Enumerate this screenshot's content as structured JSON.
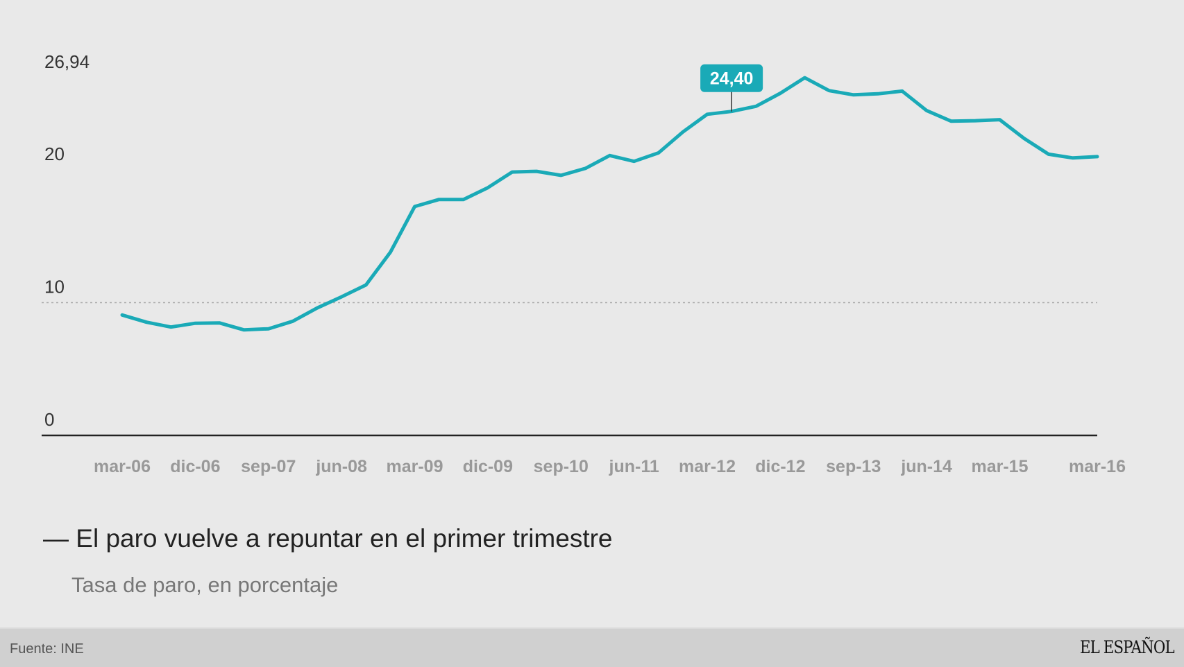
{
  "chart_data": {
    "type": "line",
    "title": "— El paro vuelve a repuntar en el primer trimestre",
    "subtitle": "Tasa de paro, en porcentaje",
    "ylabel": "",
    "xlabel": "",
    "ylim": [
      0,
      26.94
    ],
    "yticks": [
      {
        "value": 0,
        "label": "0"
      },
      {
        "value": 10,
        "label": "10"
      },
      {
        "value": 20,
        "label": "20"
      },
      {
        "value": 26.94,
        "label": "26,94"
      }
    ],
    "x": [
      "mar-06",
      "jun-06",
      "sep-06",
      "dic-06",
      "mar-07",
      "jun-07",
      "sep-07",
      "dic-07",
      "mar-08",
      "jun-08",
      "sep-08",
      "dic-08",
      "mar-09",
      "jun-09",
      "sep-09",
      "dic-09",
      "mar-10",
      "jun-10",
      "sep-10",
      "dic-10",
      "mar-11",
      "jun-11",
      "sep-11",
      "dic-11",
      "mar-12",
      "jun-12",
      "sep-12",
      "dic-12",
      "mar-13",
      "jun-13",
      "sep-13",
      "dic-13",
      "mar-14",
      "jun-14",
      "sep-14",
      "dic-14",
      "mar-15",
      "jun-15",
      "sep-15",
      "dic-15",
      "mar-16"
    ],
    "xtick_labels": [
      {
        "index": 0,
        "label": "mar-06"
      },
      {
        "index": 3,
        "label": "dic-06"
      },
      {
        "index": 6,
        "label": "sep-07"
      },
      {
        "index": 9,
        "label": "jun-08"
      },
      {
        "index": 12,
        "label": "mar-09"
      },
      {
        "index": 15,
        "label": "dic-09"
      },
      {
        "index": 18,
        "label": "sep-10"
      },
      {
        "index": 21,
        "label": "jun-11"
      },
      {
        "index": 24,
        "label": "mar-12"
      },
      {
        "index": 27,
        "label": "dic-12"
      },
      {
        "index": 30,
        "label": "sep-13"
      },
      {
        "index": 33,
        "label": "jun-14"
      },
      {
        "index": 36,
        "label": "mar-15"
      },
      {
        "index": 40,
        "label": "mar-16"
      }
    ],
    "series": [
      {
        "name": "Tasa de paro",
        "color": "#1aaab7",
        "values": [
          9.07,
          8.53,
          8.16,
          8.45,
          8.47,
          7.95,
          8.03,
          8.6,
          9.6,
          10.44,
          11.33,
          13.79,
          17.24,
          17.77,
          17.77,
          18.66,
          19.84,
          19.89,
          19.59,
          20.11,
          21.08,
          20.64,
          21.28,
          22.85,
          24.19,
          24.4,
          24.79,
          25.77,
          26.94,
          25.97,
          25.65,
          25.73,
          25.93,
          24.47,
          23.67,
          23.7,
          23.78,
          22.37,
          21.18,
          20.9,
          21.0
        ]
      }
    ],
    "reference_line": {
      "value": 10,
      "style": "dotted"
    },
    "tooltip": {
      "index": 25,
      "label": "24,40"
    },
    "grid": false,
    "legend": "none"
  },
  "source": "Fuente: INE",
  "brand": "EL ESPAÑOL"
}
